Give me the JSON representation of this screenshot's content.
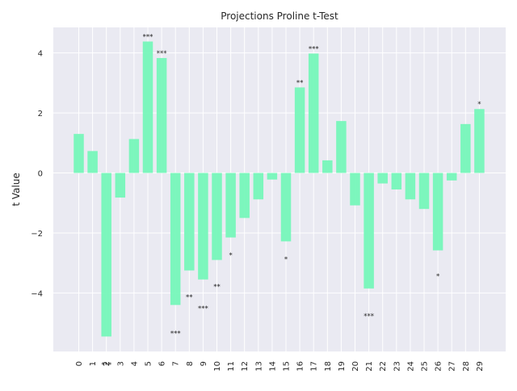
{
  "chart_data": {
    "type": "bar",
    "title": "Projections Proline t-Test",
    "xlabel": "",
    "ylabel": "t Value",
    "categories": [
      "0",
      "1",
      "2",
      "3",
      "4",
      "5",
      "6",
      "7",
      "8",
      "9",
      "10",
      "11",
      "12",
      "13",
      "14",
      "15",
      "16",
      "17",
      "18",
      "19",
      "20",
      "21",
      "22",
      "23",
      "24",
      "25",
      "26",
      "27",
      "28",
      "29"
    ],
    "values": [
      1.3,
      0.73,
      -5.45,
      -0.82,
      1.13,
      4.38,
      3.83,
      -4.4,
      -3.25,
      -3.55,
      -2.9,
      -2.15,
      -1.5,
      -0.88,
      -0.22,
      -2.28,
      2.85,
      3.98,
      0.42,
      1.73,
      -1.08,
      -3.85,
      -0.35,
      -0.55,
      -0.88,
      -1.2,
      -2.58,
      -0.25,
      1.63,
      2.13
    ],
    "significance": [
      "",
      "",
      "***",
      "",
      "",
      "***",
      "***",
      "***",
      "**",
      "***",
      "**",
      "*",
      "",
      "",
      "",
      "*",
      "**",
      "***",
      "",
      "",
      "",
      "***",
      "",
      "",
      "",
      "",
      "*",
      "",
      "",
      "*"
    ],
    "ylim": [
      -5.95,
      4.85
    ],
    "yticks": [
      -4,
      -2,
      0,
      2,
      4
    ],
    "ytick_labels": [
      "−4",
      "−2",
      "0",
      "2",
      "4"
    ],
    "grid": true,
    "bar_color": "#76f7b9",
    "background_color": "#eaeaf2",
    "grid_color": "#ffffff"
  }
}
